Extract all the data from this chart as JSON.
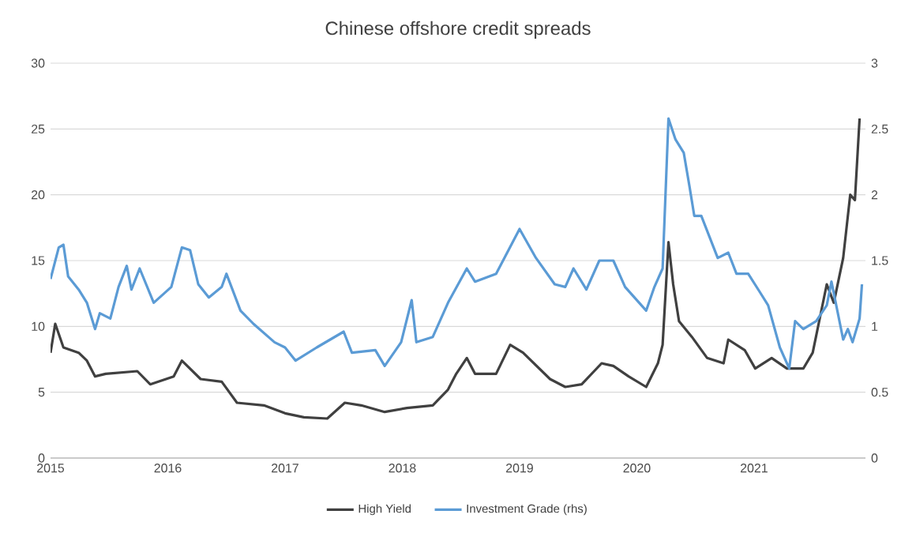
{
  "chart_data": {
    "type": "line",
    "title": "Chinese offshore credit spreads",
    "xlim": [
      2015,
      2021.95
    ],
    "xticks": [
      2015,
      2016,
      2017,
      2018,
      2019,
      2020,
      2021
    ],
    "ylim": [
      0,
      30
    ],
    "yticks": [
      0,
      5,
      10,
      15,
      20,
      25,
      30
    ],
    "y2lim": [
      0,
      3
    ],
    "y2ticks": [
      0,
      0.5,
      1,
      1.5,
      2,
      2.5,
      3
    ],
    "grid": "y",
    "legend": "bottom",
    "marker": "none",
    "line_style": "solid",
    "series": [
      {
        "name": "High Yield",
        "color": "#404040",
        "x": [
          2015.0,
          2015.04,
          2015.11,
          2015.24,
          2015.31,
          2015.38,
          2015.47,
          2015.74,
          2015.85,
          2016.05,
          2016.12,
          2016.28,
          2016.46,
          2016.59,
          2016.82,
          2017.0,
          2017.16,
          2017.36,
          2017.51,
          2017.65,
          2017.85,
          2018.04,
          2018.26,
          2018.39,
          2018.46,
          2018.55,
          2018.62,
          2018.8,
          2018.92,
          2019.03,
          2019.26,
          2019.39,
          2019.53,
          2019.7,
          2019.8,
          2019.93,
          2020.08,
          2020.18,
          2020.22,
          2020.27,
          2020.31,
          2020.36,
          2020.47,
          2020.6,
          2020.74,
          2020.78,
          2020.92,
          2021.01,
          2021.15,
          2021.28,
          2021.42,
          2021.5,
          2021.62,
          2021.68,
          2021.76,
          2021.82,
          2021.86,
          2021.9
        ],
        "values": [
          8.0,
          10.2,
          8.4,
          8.0,
          7.4,
          6.2,
          6.4,
          6.6,
          5.6,
          6.2,
          7.4,
          6.0,
          5.8,
          4.2,
          4.0,
          3.4,
          3.1,
          3.0,
          4.2,
          4.0,
          3.5,
          3.8,
          4.0,
          5.2,
          6.4,
          7.6,
          6.4,
          6.4,
          8.6,
          8.0,
          6.0,
          5.4,
          5.6,
          7.2,
          7.0,
          6.2,
          5.4,
          7.2,
          8.6,
          16.4,
          13.2,
          10.4,
          9.2,
          7.6,
          7.2,
          9.0,
          8.2,
          6.8,
          7.6,
          6.8,
          6.8,
          8.0,
          13.2,
          11.8,
          15.2,
          20.0,
          19.6,
          25.8
        ]
      },
      {
        "name": "Investment Grade (rhs)",
        "color": "#5b9bd5",
        "axis": "y2",
        "x": [
          2015.0,
          2015.07,
          2015.11,
          2015.15,
          2015.24,
          2015.31,
          2015.38,
          2015.42,
          2015.51,
          2015.58,
          2015.65,
          2015.69,
          2015.76,
          2015.88,
          2016.03,
          2016.12,
          2016.19,
          2016.26,
          2016.35,
          2016.46,
          2016.5,
          2016.62,
          2016.73,
          2016.91,
          2017.0,
          2017.09,
          2017.27,
          2017.5,
          2017.57,
          2017.77,
          2017.85,
          2017.99,
          2018.08,
          2018.12,
          2018.26,
          2018.39,
          2018.55,
          2018.62,
          2018.8,
          2019.0,
          2019.14,
          2019.3,
          2019.39,
          2019.46,
          2019.57,
          2019.68,
          2019.8,
          2019.9,
          2020.08,
          2020.15,
          2020.22,
          2020.27,
          2020.33,
          2020.4,
          2020.45,
          2020.49,
          2020.55,
          2020.69,
          2020.78,
          2020.85,
          2020.95,
          2021.05,
          2021.12,
          2021.22,
          2021.3,
          2021.35,
          2021.42,
          2021.53,
          2021.62,
          2021.66,
          2021.76,
          2021.8,
          2021.84,
          2021.9,
          2021.92
        ],
        "values": [
          1.36,
          1.6,
          1.62,
          1.38,
          1.28,
          1.18,
          0.98,
          1.1,
          1.06,
          1.3,
          1.46,
          1.28,
          1.44,
          1.18,
          1.3,
          1.6,
          1.58,
          1.32,
          1.22,
          1.3,
          1.4,
          1.12,
          1.02,
          0.88,
          0.84,
          0.74,
          0.84,
          0.96,
          0.8,
          0.82,
          0.7,
          0.88,
          1.2,
          0.88,
          0.92,
          1.18,
          1.44,
          1.34,
          1.4,
          1.74,
          1.52,
          1.32,
          1.3,
          1.44,
          1.28,
          1.5,
          1.5,
          1.3,
          1.12,
          1.3,
          1.44,
          2.58,
          2.42,
          2.32,
          2.06,
          1.84,
          1.84,
          1.52,
          1.56,
          1.4,
          1.4,
          1.26,
          1.16,
          0.84,
          0.68,
          1.04,
          0.98,
          1.04,
          1.16,
          1.34,
          0.9,
          0.98,
          0.88,
          1.06,
          1.32
        ]
      }
    ]
  }
}
